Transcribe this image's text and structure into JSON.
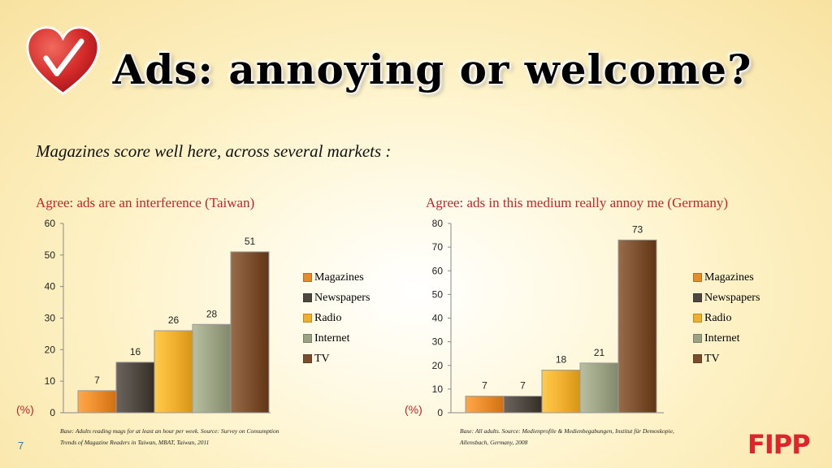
{
  "slide": {
    "title": "Ads: annoying or welcome?",
    "subtitle": "Magazines score well here, across several markets :",
    "page_number": "7",
    "logo_text": "FIPP"
  },
  "colors": {
    "accent": "#c0262a",
    "Magazines": "#e98a2a",
    "Newspapers": "#4e4740",
    "Radio": "#f0ae2e",
    "Internet": "#9aa283",
    "TV": "#7a4e2c"
  },
  "chart_data": [
    {
      "type": "bar",
      "title": "Agree: ads are an interference (Taiwan)",
      "categories": [
        "Magazines",
        "Newspapers",
        "Radio",
        "Internet",
        "TV"
      ],
      "values": [
        7,
        16,
        26,
        28,
        51
      ],
      "ylim": [
        0,
        60
      ],
      "yticks": [
        0,
        10,
        20,
        30,
        40,
        50,
        60
      ],
      "unit_label": "(%)",
      "legend": "right",
      "grid": false,
      "source": "Base: Adults reading mags for at least an hour per week. Source: Survey on Consumption Trends of Magazine Readers in Taiwan, MBAT, Taiwan, 2011"
    },
    {
      "type": "bar",
      "title": "Agree: ads in this medium really annoy me (Germany)",
      "categories": [
        "Magazines",
        "Newspapers",
        "Radio",
        "Internet",
        "TV"
      ],
      "values": [
        7,
        7,
        18,
        21,
        73
      ],
      "ylim": [
        0,
        80
      ],
      "yticks": [
        0,
        10,
        20,
        30,
        40,
        50,
        60,
        70,
        80
      ],
      "unit_label": "(%)",
      "legend": "right",
      "grid": false,
      "source": "Base: All adults. Source: Medienprofile & Medienbegabungen, Institut für Demoskopie, Allensbach, Germany, 2008"
    }
  ]
}
